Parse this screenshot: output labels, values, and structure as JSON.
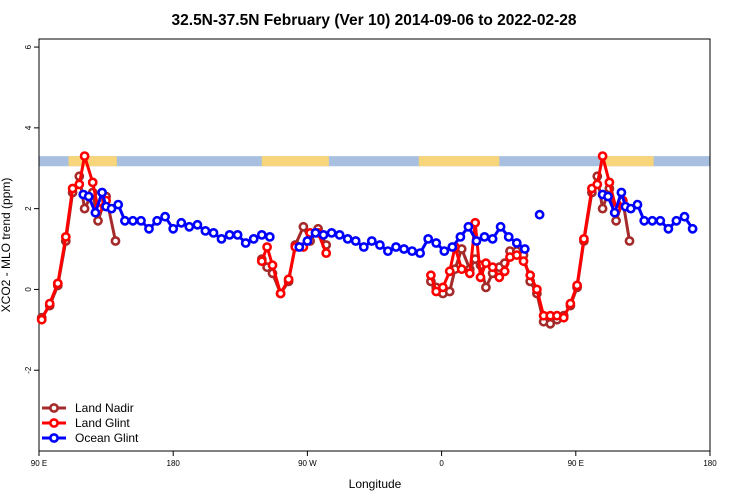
{
  "chart_data": {
    "type": "line",
    "title": "32.5N-37.5N February (Ver 10)   2014-09-06 to 2022-02-28",
    "xlabel": "Longitude",
    "ylabel": "XCO2 - MLO trend (ppm)",
    "xlim": [
      0,
      500
    ],
    "ylim": [
      -4,
      6.2
    ],
    "x_ticks": [
      {
        "x": 0,
        "label": "90 E"
      },
      {
        "x": 100,
        "label": "180"
      },
      {
        "x": 200,
        "label": "90 W"
      },
      {
        "x": 300,
        "label": "0"
      },
      {
        "x": 400,
        "label": "90 E"
      },
      {
        "x": 500,
        "label": "180"
      }
    ],
    "y_ticks": [
      {
        "y": -2,
        "label": "-2"
      },
      {
        "y": 0,
        "label": "0"
      },
      {
        "y": 2,
        "label": "2"
      },
      {
        "y": 4,
        "label": "4"
      },
      {
        "y": 6,
        "label": "6"
      }
    ],
    "grid": false,
    "legend_position": "bottom-left",
    "land_mask_band": {
      "y_range": [
        3.05,
        3.3
      ],
      "ocean_color": "#a8bfe0",
      "land_color": "#f7d57a",
      "land_segments": [
        [
          22,
          58
        ],
        [
          166,
          216
        ],
        [
          283,
          343
        ],
        [
          422,
          458
        ]
      ]
    },
    "series": [
      {
        "name": "Land Nadir",
        "color": "#a52a2a",
        "points": [
          [
            2,
            -0.7
          ],
          [
            8,
            -0.4
          ],
          [
            14,
            0.1
          ],
          [
            20,
            1.2
          ],
          [
            25,
            2.4
          ],
          [
            30,
            2.8
          ],
          [
            34,
            2.0
          ],
          [
            40,
            2.4
          ],
          [
            44,
            1.7
          ],
          [
            50,
            2.3
          ],
          [
            57,
            1.2
          ],
          [
            166,
            0.75
          ],
          [
            170,
            0.55
          ],
          [
            174,
            0.4
          ],
          [
            180,
            -0.1
          ],
          [
            186,
            0.2
          ],
          [
            191,
            1.1
          ],
          [
            197,
            1.55
          ],
          [
            202,
            1.2
          ],
          [
            208,
            1.5
          ],
          [
            214,
            1.1
          ],
          [
            292,
            0.2
          ],
          [
            296,
            0.05
          ],
          [
            301,
            -0.1
          ],
          [
            306,
            -0.05
          ],
          [
            310,
            0.5
          ],
          [
            315,
            1.0
          ],
          [
            321,
            0.5
          ],
          [
            325,
            0.75
          ],
          [
            329,
            0.6
          ],
          [
            333,
            0.05
          ],
          [
            338,
            0.4
          ],
          [
            343,
            0.55
          ],
          [
            347,
            0.65
          ],
          [
            351,
            0.95
          ],
          [
            356,
            0.95
          ],
          [
            361,
            0.85
          ],
          [
            366,
            0.2
          ],
          [
            371,
            -0.1
          ],
          [
            376,
            -0.8
          ],
          [
            381,
            -0.85
          ],
          [
            386,
            -0.75
          ],
          [
            391,
            -0.65
          ],
          [
            396,
            -0.4
          ],
          [
            401,
            0.05
          ],
          [
            406,
            1.2
          ],
          [
            412,
            2.4
          ],
          [
            416,
            2.8
          ],
          [
            420,
            2.0
          ],
          [
            425,
            2.5
          ],
          [
            430,
            1.7
          ],
          [
            435,
            2.2
          ],
          [
            440,
            1.2
          ]
        ]
      },
      {
        "name": "Land Glint",
        "color": "#ff0000",
        "points": [
          [
            2,
            -0.75
          ],
          [
            8,
            -0.35
          ],
          [
            14,
            0.15
          ],
          [
            20,
            1.3
          ],
          [
            25,
            2.5
          ],
          [
            30,
            2.6
          ],
          [
            34,
            3.3
          ],
          [
            40,
            2.65
          ],
          [
            44,
            2.0
          ],
          [
            50,
            2.2
          ],
          [
            166,
            0.7
          ],
          [
            170,
            1.05
          ],
          [
            174,
            0.6
          ],
          [
            180,
            -0.1
          ],
          [
            186,
            0.25
          ],
          [
            191,
            1.05
          ],
          [
            197,
            1.05
          ],
          [
            202,
            1.4
          ],
          [
            208,
            1.4
          ],
          [
            214,
            0.9
          ],
          [
            292,
            0.35
          ],
          [
            296,
            -0.05
          ],
          [
            301,
            0.05
          ],
          [
            306,
            0.45
          ],
          [
            310,
            1.05
          ],
          [
            315,
            0.5
          ],
          [
            321,
            0.4
          ],
          [
            325,
            1.65
          ],
          [
            329,
            0.3
          ],
          [
            333,
            0.65
          ],
          [
            338,
            0.55
          ],
          [
            343,
            0.3
          ],
          [
            347,
            0.45
          ],
          [
            351,
            0.8
          ],
          [
            356,
            0.85
          ],
          [
            361,
            0.7
          ],
          [
            366,
            0.35
          ],
          [
            371,
            0.0
          ],
          [
            376,
            -0.65
          ],
          [
            381,
            -0.65
          ],
          [
            386,
            -0.65
          ],
          [
            391,
            -0.7
          ],
          [
            396,
            -0.35
          ],
          [
            401,
            0.1
          ],
          [
            406,
            1.25
          ],
          [
            412,
            2.5
          ],
          [
            416,
            2.6
          ],
          [
            420,
            3.3
          ],
          [
            425,
            2.65
          ],
          [
            430,
            2.0
          ],
          [
            435,
            2.2
          ]
        ]
      },
      {
        "name": "Ocean Glint",
        "color": "#0000ff",
        "points": [
          [
            33,
            2.35
          ],
          [
            37,
            2.3
          ],
          [
            42,
            1.9
          ],
          [
            47,
            2.4
          ],
          [
            50,
            2.05
          ],
          [
            54,
            2.0
          ],
          [
            59,
            2.1
          ],
          [
            64,
            1.7
          ],
          [
            70,
            1.7
          ],
          [
            76,
            1.7
          ],
          [
            82,
            1.5
          ],
          [
            88,
            1.7
          ],
          [
            94,
            1.8
          ],
          [
            100,
            1.5
          ],
          [
            106,
            1.65
          ],
          [
            112,
            1.55
          ],
          [
            118,
            1.6
          ],
          [
            124,
            1.45
          ],
          [
            130,
            1.4
          ],
          [
            136,
            1.25
          ],
          [
            142,
            1.35
          ],
          [
            148,
            1.35
          ],
          [
            154,
            1.15
          ],
          [
            160,
            1.25
          ],
          [
            166,
            1.35
          ],
          [
            172,
            1.3
          ],
          [
            194,
            1.05
          ],
          [
            200,
            1.2
          ],
          [
            206,
            1.4
          ],
          [
            212,
            1.35
          ],
          [
            218,
            1.4
          ],
          [
            224,
            1.35
          ],
          [
            230,
            1.25
          ],
          [
            236,
            1.2
          ],
          [
            242,
            1.05
          ],
          [
            248,
            1.2
          ],
          [
            254,
            1.1
          ],
          [
            260,
            0.95
          ],
          [
            266,
            1.05
          ],
          [
            272,
            1.0
          ],
          [
            278,
            0.95
          ],
          [
            284,
            0.9
          ],
          [
            290,
            1.25
          ],
          [
            296,
            1.15
          ],
          [
            302,
            0.95
          ],
          [
            308,
            1.05
          ],
          [
            314,
            1.3
          ],
          [
            320,
            1.55
          ],
          [
            326,
            1.2
          ],
          [
            332,
            1.3
          ],
          [
            338,
            1.25
          ],
          [
            344,
            1.55
          ],
          [
            350,
            1.3
          ],
          [
            356,
            1.15
          ],
          [
            362,
            1.0
          ],
          [
            373,
            1.85
          ],
          [
            420,
            2.35
          ],
          [
            424,
            2.3
          ],
          [
            429,
            1.9
          ],
          [
            434,
            2.4
          ],
          [
            437,
            2.05
          ],
          [
            441,
            2.0
          ],
          [
            446,
            2.1
          ],
          [
            451,
            1.7
          ],
          [
            457,
            1.7
          ],
          [
            463,
            1.7
          ],
          [
            469,
            1.5
          ],
          [
            475,
            1.7
          ],
          [
            481,
            1.8
          ],
          [
            487,
            1.5
          ]
        ]
      }
    ]
  }
}
